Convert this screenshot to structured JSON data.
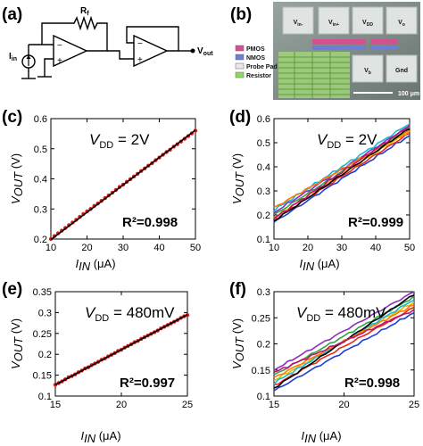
{
  "panels": {
    "a": {
      "label": "(a)",
      "rf": "R",
      "rf_sub": "f",
      "iin": "I",
      "iin_sub": "in",
      "vout": "V",
      "vout_sub": "out",
      "plus": "+",
      "minus": "−"
    },
    "b": {
      "label": "(b)",
      "pads": [
        "V",
        "V",
        "V",
        "V",
        "V",
        "Gnd"
      ],
      "pad_subs": [
        "in-",
        "in+",
        "DD",
        "o",
        "b",
        ""
      ],
      "legend": [
        "PMOS",
        "NMOS",
        "Probe Pad",
        "Resistor"
      ],
      "legend_colors": [
        "#d4508f",
        "#6c7fd8",
        "#e8e8e8",
        "#8fd860"
      ],
      "scale_bar": "100 μm"
    },
    "c": {
      "label": "(c)",
      "vdd": "V",
      "vdd_sub": "DD",
      "vdd_val": " = 2V",
      "r2": "R²=0.998"
    },
    "d": {
      "label": "(d)",
      "vdd": "V",
      "vdd_sub": "DD",
      "vdd_val": " = 2V",
      "r2": "R²=0.999"
    },
    "e": {
      "label": "(e)",
      "vdd": "V",
      "vdd_sub": "DD",
      "vdd_val": " = 480mV",
      "r2": "R²=0.997"
    },
    "f": {
      "label": "(f)",
      "vdd": "V",
      "vdd_sub": "DD",
      "vdd_val": " = 480mV",
      "r2": "R²=0.998"
    }
  },
  "axes_text": {
    "ylabel_main": "V",
    "ylabel_sub": "OUT",
    "ylabel_unit": " (V)",
    "xlabel_main": "I",
    "xlabel_sub": "IN",
    "xlabel_unit": " (μA)"
  },
  "colors": {
    "fit_line": "#000000",
    "markers": "#e01818"
  },
  "chart_data": [
    {
      "panel": "c",
      "type": "scatter",
      "x": [
        10,
        11,
        12,
        13,
        14,
        15,
        16,
        17,
        18,
        19,
        20,
        21,
        22,
        23,
        24,
        25,
        26,
        27,
        28,
        29,
        30,
        31,
        32,
        33,
        34,
        35,
        36,
        37,
        38,
        39,
        40,
        41,
        42,
        43,
        44,
        45,
        46,
        47,
        48,
        49,
        50
      ],
      "y": [
        0.2,
        0.21,
        0.219,
        0.228,
        0.237,
        0.246,
        0.255,
        0.264,
        0.274,
        0.283,
        0.292,
        0.3,
        0.31,
        0.318,
        0.327,
        0.336,
        0.345,
        0.354,
        0.363,
        0.373,
        0.381,
        0.39,
        0.399,
        0.408,
        0.417,
        0.426,
        0.435,
        0.444,
        0.452,
        0.462,
        0.471,
        0.48,
        0.489,
        0.497,
        0.507,
        0.515,
        0.524,
        0.533,
        0.542,
        0.551,
        0.56
      ],
      "fit": [
        [
          10,
          0.198
        ],
        [
          50,
          0.562
        ]
      ],
      "xlim": [
        10,
        50
      ],
      "ylim": [
        0.2,
        0.6
      ],
      "xticks": [
        10,
        20,
        30,
        40,
        50
      ],
      "yticks": [
        0.2,
        0.3,
        0.4,
        0.5,
        0.6
      ],
      "grid": false
    },
    {
      "panel": "d",
      "type": "line",
      "x": [
        10,
        50
      ],
      "series": [
        {
          "values": [
            0.17,
            0.53
          ]
        },
        {
          "values": [
            0.18,
            0.54
          ]
        },
        {
          "values": [
            0.19,
            0.55
          ]
        },
        {
          "values": [
            0.2,
            0.56
          ]
        },
        {
          "values": [
            0.21,
            0.57
          ]
        },
        {
          "values": [
            0.22,
            0.58
          ]
        },
        {
          "values": [
            0.23,
            0.55
          ]
        },
        {
          "values": [
            0.175,
            0.56
          ]
        },
        {
          "values": [
            0.185,
            0.57
          ]
        }
      ],
      "xlim": [
        10,
        50
      ],
      "ylim": [
        0.1,
        0.6
      ],
      "xticks": [
        10,
        20,
        30,
        40,
        50
      ],
      "yticks": [
        0.1,
        0.2,
        0.3,
        0.4,
        0.5,
        0.6
      ],
      "grid": false
    },
    {
      "panel": "e",
      "type": "scatter",
      "x": [
        15,
        15.25,
        15.5,
        15.75,
        16,
        16.25,
        16.5,
        16.75,
        17,
        17.25,
        17.5,
        17.75,
        18,
        18.25,
        18.5,
        18.75,
        19,
        19.25,
        19.5,
        19.75,
        20,
        20.25,
        20.5,
        20.75,
        21,
        21.25,
        21.5,
        21.75,
        22,
        22.25,
        22.5,
        22.75,
        23,
        23.25,
        23.5,
        23.75,
        24,
        24.25,
        24.5,
        24.75,
        25
      ],
      "y": [
        0.127,
        0.131,
        0.135,
        0.14,
        0.145,
        0.148,
        0.152,
        0.157,
        0.161,
        0.166,
        0.169,
        0.174,
        0.178,
        0.182,
        0.187,
        0.19,
        0.195,
        0.199,
        0.203,
        0.208,
        0.211,
        0.216,
        0.22,
        0.224,
        0.229,
        0.232,
        0.237,
        0.241,
        0.245,
        0.249,
        0.253,
        0.257,
        0.262,
        0.266,
        0.27,
        0.274,
        0.278,
        0.282,
        0.287,
        0.291,
        0.294
      ],
      "fit": [
        [
          15,
          0.127
        ],
        [
          25,
          0.295
        ]
      ],
      "xlim": [
        15,
        25
      ],
      "ylim": [
        0.1,
        0.35
      ],
      "xticks": [
        15,
        20,
        25
      ],
      "yticks": [
        0.1,
        0.15,
        0.2,
        0.25,
        0.3,
        0.35
      ],
      "grid": false
    },
    {
      "panel": "f",
      "type": "line",
      "x": [
        15,
        25
      ],
      "series": [
        {
          "values": [
            0.11,
            0.26
          ]
        },
        {
          "values": [
            0.12,
            0.27
          ]
        },
        {
          "values": [
            0.13,
            0.28
          ]
        },
        {
          "values": [
            0.14,
            0.29
          ]
        },
        {
          "values": [
            0.15,
            0.3
          ]
        },
        {
          "values": [
            0.125,
            0.285
          ]
        },
        {
          "values": [
            0.135,
            0.275
          ]
        },
        {
          "values": [
            0.115,
            0.295
          ]
        },
        {
          "values": [
            0.145,
            0.265
          ]
        }
      ],
      "xlim": [
        15,
        25
      ],
      "ylim": [
        0.1,
        0.3
      ],
      "xticks": [
        15,
        20,
        25
      ],
      "yticks": [
        0.1,
        0.15,
        0.2,
        0.25,
        0.3
      ],
      "grid": false
    }
  ]
}
